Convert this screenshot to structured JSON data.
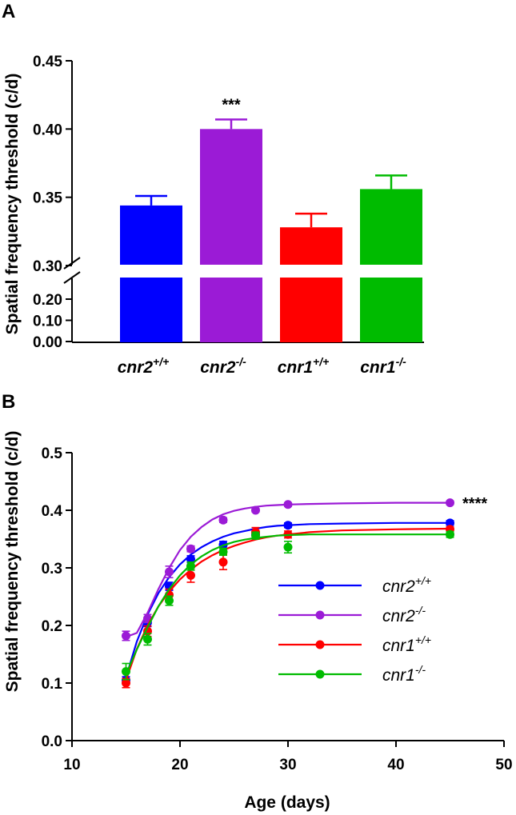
{
  "chart_data": [
    {
      "panel": "A",
      "type": "bar",
      "ylabel": "Spatial frequency threshold (c/d)",
      "y_axis_break": [
        0.2,
        0.3
      ],
      "y_ticks_lower": [
        "0.00",
        "0.10",
        "0.20"
      ],
      "y_ticks_upper": [
        "0.30",
        "0.35",
        "0.40",
        "0.45"
      ],
      "ylim": [
        0,
        0.45
      ],
      "categories": [
        {
          "base": "cnr2",
          "sup": "+/+",
          "value": 0.344,
          "error": 0.007,
          "color": "#0000ff",
          "annotation": ""
        },
        {
          "base": "cnr2",
          "sup": "-/-",
          "value": 0.4,
          "error": 0.007,
          "color": "#9b1bd6",
          "annotation": "***"
        },
        {
          "base": "cnr1",
          "sup": "+/+",
          "value": 0.328,
          "error": 0.01,
          "color": "#ff0000",
          "annotation": ""
        },
        {
          "base": "cnr1",
          "sup": "-/-",
          "value": 0.356,
          "error": 0.01,
          "color": "#00bb00",
          "annotation": ""
        }
      ]
    },
    {
      "panel": "B",
      "type": "line",
      "xlabel": "Age (days)",
      "ylabel": "Spatial frequency threshold (c/d)",
      "xlim": [
        10,
        50
      ],
      "ylim": [
        0,
        0.5
      ],
      "x_ticks": [
        "10",
        "20",
        "30",
        "40",
        "50"
      ],
      "y_ticks": [
        "0.0",
        "0.1",
        "0.2",
        "0.3",
        "0.4",
        "0.5"
      ],
      "annotation": "****",
      "legend_position": "center-right",
      "series": [
        {
          "base": "cnr2",
          "sup": "+/+",
          "color": "#0000ff",
          "x": [
            15,
            17,
            19,
            21,
            24,
            27,
            30,
            45
          ],
          "y": [
            0.105,
            0.205,
            0.268,
            0.315,
            0.34,
            0.358,
            0.374,
            0.378
          ],
          "err": [
            0.006,
            0.007,
            0.007,
            0.006,
            0.006,
            0.005,
            0.004,
            0.004
          ],
          "fit_x": [
            15,
            16,
            17,
            18,
            19,
            20,
            21,
            22,
            23,
            24,
            25,
            26,
            27,
            28,
            29,
            30,
            32,
            35,
            40,
            45
          ],
          "fit_y": [
            0.11,
            0.172,
            0.219,
            0.256,
            0.284,
            0.306,
            0.323,
            0.336,
            0.346,
            0.354,
            0.36,
            0.364,
            0.368,
            0.371,
            0.373,
            0.374,
            0.376,
            0.377,
            0.378,
            0.378
          ]
        },
        {
          "base": "cnr2",
          "sup": "-/-",
          "color": "#9b1bd6",
          "x": [
            15,
            17,
            19,
            21,
            24,
            27,
            30,
            45
          ],
          "y": [
            0.182,
            0.212,
            0.293,
            0.333,
            0.383,
            0.4,
            0.41,
            0.413
          ],
          "err": [
            0.008,
            0.007,
            0.01,
            0.005,
            0.004,
            0.003,
            0.003,
            0.003
          ],
          "fit_x": [
            15,
            16,
            17,
            18,
            19,
            20,
            21,
            22,
            23,
            24,
            25,
            26,
            27,
            28,
            29,
            30,
            32,
            35,
            40,
            45
          ],
          "fit_y": [
            0.18,
            0.187,
            0.222,
            0.263,
            0.3,
            0.331,
            0.354,
            0.371,
            0.384,
            0.393,
            0.399,
            0.403,
            0.406,
            0.408,
            0.409,
            0.41,
            0.411,
            0.412,
            0.413,
            0.413
          ]
        },
        {
          "base": "cnr1",
          "sup": "+/+",
          "color": "#ff0000",
          "x": [
            15,
            17,
            19,
            21,
            24,
            27,
            30,
            45
          ],
          "y": [
            0.1,
            0.19,
            0.253,
            0.287,
            0.31,
            0.362,
            0.358,
            0.367
          ],
          "err": [
            0.008,
            0.009,
            0.01,
            0.012,
            0.013,
            0.008,
            0.006,
            0.004
          ],
          "fit_x": [
            15,
            16,
            17,
            18,
            19,
            20,
            21,
            22,
            23,
            24,
            25,
            26,
            27,
            28,
            29,
            30,
            32,
            35,
            40,
            45
          ],
          "fit_y": [
            0.105,
            0.159,
            0.2,
            0.233,
            0.259,
            0.28,
            0.297,
            0.311,
            0.322,
            0.331,
            0.338,
            0.344,
            0.349,
            0.353,
            0.356,
            0.358,
            0.362,
            0.365,
            0.367,
            0.368
          ]
        },
        {
          "base": "cnr1",
          "sup": "-/-",
          "color": "#00bb00",
          "x": [
            15,
            17,
            19,
            21,
            24,
            27,
            30,
            45
          ],
          "y": [
            0.12,
            0.176,
            0.243,
            0.303,
            0.328,
            0.356,
            0.336,
            0.358
          ],
          "err": [
            0.014,
            0.01,
            0.008,
            0.007,
            0.006,
            0.006,
            0.01,
            0.005
          ],
          "fit_x": [
            15,
            16,
            17,
            18,
            19,
            20,
            21,
            22,
            23,
            24,
            25,
            26,
            27,
            28,
            29,
            30,
            32,
            35,
            40,
            45
          ],
          "fit_y": [
            0.115,
            0.158,
            0.197,
            0.233,
            0.263,
            0.287,
            0.306,
            0.32,
            0.331,
            0.339,
            0.345,
            0.349,
            0.352,
            0.354,
            0.356,
            0.357,
            0.358,
            0.358,
            0.358,
            0.358
          ]
        }
      ]
    }
  ],
  "panels": {
    "a_letter": "A",
    "b_letter": "B"
  }
}
